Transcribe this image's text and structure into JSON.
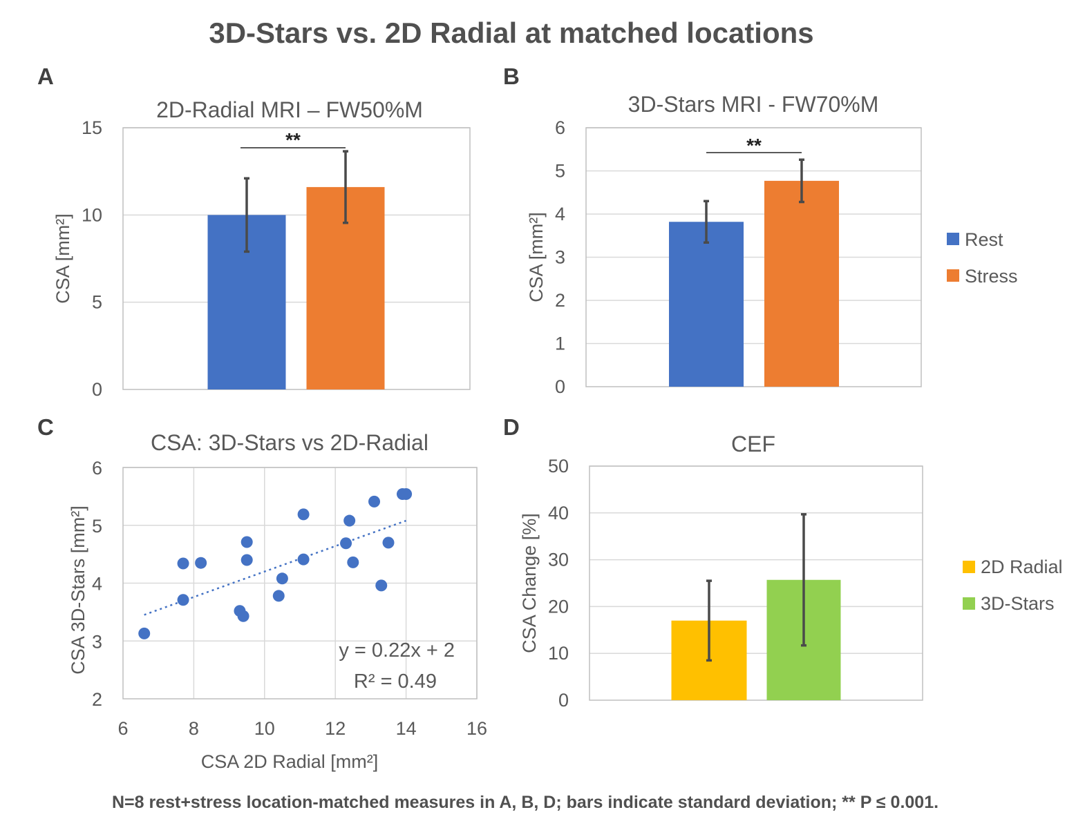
{
  "figure": {
    "title": "3D-Stars vs. 2D Radial at matched locations",
    "footnote": "N=8 rest+stress location-matched measures in A, B, D; bars indicate standard deviation; ** P ≤ 0.001."
  },
  "legends": {
    "ab": [
      {
        "label": "Rest",
        "color": "#4472c4"
      },
      {
        "label": "Stress",
        "color": "#ed7d31"
      }
    ],
    "d": [
      {
        "label": "2D Radial",
        "color": "#ffc000"
      },
      {
        "label": "3D-Stars",
        "color": "#92d050"
      }
    ]
  },
  "chart_data": [
    {
      "panel": "A",
      "type": "bar",
      "title": "2D-Radial MRI – FW50%M",
      "ylabel": "CSA [mm²]",
      "xlabel": "",
      "ylim": [
        0,
        15
      ],
      "yticks": [
        "0",
        "5",
        "10",
        "15"
      ],
      "grid": true,
      "series": [
        {
          "name": "Rest",
          "value": 10.0,
          "error": 2.1,
          "color": "#4472c4"
        },
        {
          "name": "Stress",
          "value": 11.6,
          "error": 2.05,
          "color": "#ed7d31"
        }
      ],
      "significance": "**",
      "legend": "right of panel B"
    },
    {
      "panel": "B",
      "type": "bar",
      "title": "3D-Stars MRI - FW70%M",
      "ylabel": "CSA [mm²]",
      "xlabel": "",
      "ylim": [
        0,
        6
      ],
      "yticks": [
        "0",
        "1",
        "2",
        "3",
        "4",
        "5",
        "6"
      ],
      "grid": true,
      "series": [
        {
          "name": "Rest",
          "value": 3.82,
          "error": 0.48,
          "color": "#4472c4"
        },
        {
          "name": "Stress",
          "value": 4.77,
          "error": 0.49,
          "color": "#ed7d31"
        }
      ],
      "significance": "**",
      "legend": "right"
    },
    {
      "panel": "C",
      "type": "scatter",
      "title": "CSA: 3D-Stars vs 2D-Radial",
      "xlabel": "CSA 2D Radial [mm²]",
      "ylabel": "CSA 3D-Stars [mm²]",
      "xlim": [
        6,
        16
      ],
      "ylim": [
        2,
        6
      ],
      "xticks": [
        "6",
        "8",
        "10",
        "12",
        "14",
        "16"
      ],
      "yticks": [
        "2",
        "3",
        "4",
        "5",
        "6"
      ],
      "grid": true,
      "color": "#4472c4",
      "points": [
        {
          "x": 6.6,
          "y": 3.13
        },
        {
          "x": 7.7,
          "y": 4.34
        },
        {
          "x": 7.7,
          "y": 3.71
        },
        {
          "x": 8.2,
          "y": 4.35
        },
        {
          "x": 9.3,
          "y": 3.52
        },
        {
          "x": 9.4,
          "y": 3.43
        },
        {
          "x": 9.5,
          "y": 4.71
        },
        {
          "x": 9.5,
          "y": 4.4
        },
        {
          "x": 10.4,
          "y": 3.78
        },
        {
          "x": 10.5,
          "y": 4.08
        },
        {
          "x": 11.1,
          "y": 5.19
        },
        {
          "x": 11.1,
          "y": 4.41
        },
        {
          "x": 12.3,
          "y": 4.69
        },
        {
          "x": 12.4,
          "y": 5.08
        },
        {
          "x": 12.5,
          "y": 4.36
        },
        {
          "x": 13.1,
          "y": 5.41
        },
        {
          "x": 13.3,
          "y": 3.96
        },
        {
          "x": 13.5,
          "y": 4.7
        },
        {
          "x": 13.9,
          "y": 5.54
        },
        {
          "x": 14.0,
          "y": 5.54
        }
      ],
      "trendline": {
        "slope": 0.22,
        "intercept": 2,
        "x_range": [
          6.6,
          14.0
        ]
      },
      "equation": "y = 0.22x + 2",
      "r_squared": "R² = 0.49"
    },
    {
      "panel": "D",
      "type": "bar",
      "title": "CEF",
      "ylabel": "CSA Change [%]",
      "xlabel": "",
      "ylim": [
        0,
        50
      ],
      "yticks": [
        "0",
        "10",
        "20",
        "30",
        "40",
        "50"
      ],
      "grid": true,
      "series": [
        {
          "name": "2D Radial",
          "value": 17,
          "error": 8.5,
          "color": "#ffc000"
        },
        {
          "name": "3D-Stars",
          "value": 25.7,
          "error": 14,
          "color": "#92d050"
        }
      ],
      "legend": "right"
    }
  ]
}
